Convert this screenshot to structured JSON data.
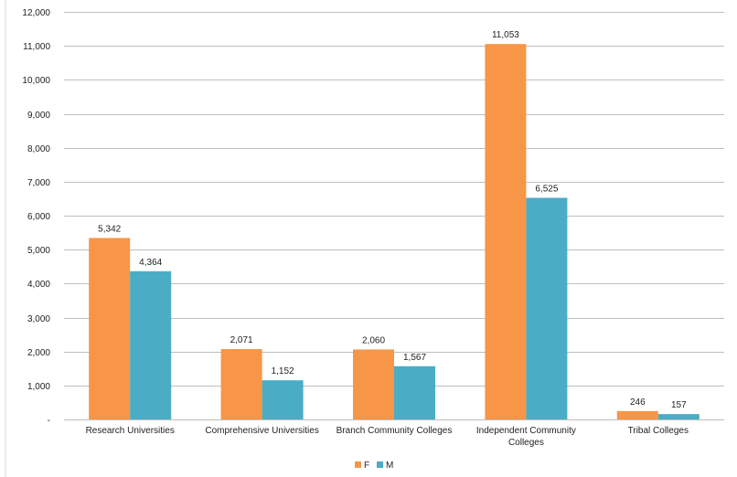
{
  "chart_data": {
    "type": "bar",
    "categories": [
      [
        "Research Universities"
      ],
      [
        "Comprehensive Universities"
      ],
      [
        "Branch Community Colleges"
      ],
      [
        "Independent Community",
        "Colleges"
      ],
      [
        "Tribal Colleges"
      ]
    ],
    "series": [
      {
        "name": "F",
        "color": "#F79646",
        "values": [
          5342,
          2071,
          2060,
          11053,
          246
        ],
        "labels": [
          "5,342",
          "2,071",
          "2,060",
          "11,053",
          "246"
        ]
      },
      {
        "name": "M",
        "color": "#4BACC6",
        "values": [
          4364,
          1152,
          1567,
          6525,
          157
        ],
        "labels": [
          "4,364",
          "1,152",
          "1,567",
          "6,525",
          "157"
        ]
      }
    ],
    "ylim": [
      0,
      12000
    ],
    "yticks": [
      0,
      1000,
      2000,
      3000,
      4000,
      5000,
      6000,
      7000,
      8000,
      9000,
      10000,
      11000,
      12000
    ],
    "ytick_labels": [
      "-",
      "1,000",
      "2,000",
      "3,000",
      "4,000",
      "5,000",
      "6,000",
      "7,000",
      "8,000",
      "9,000",
      "10,000",
      "11,000",
      "12,000"
    ],
    "grid": true,
    "legend_position": "bottom-center"
  }
}
